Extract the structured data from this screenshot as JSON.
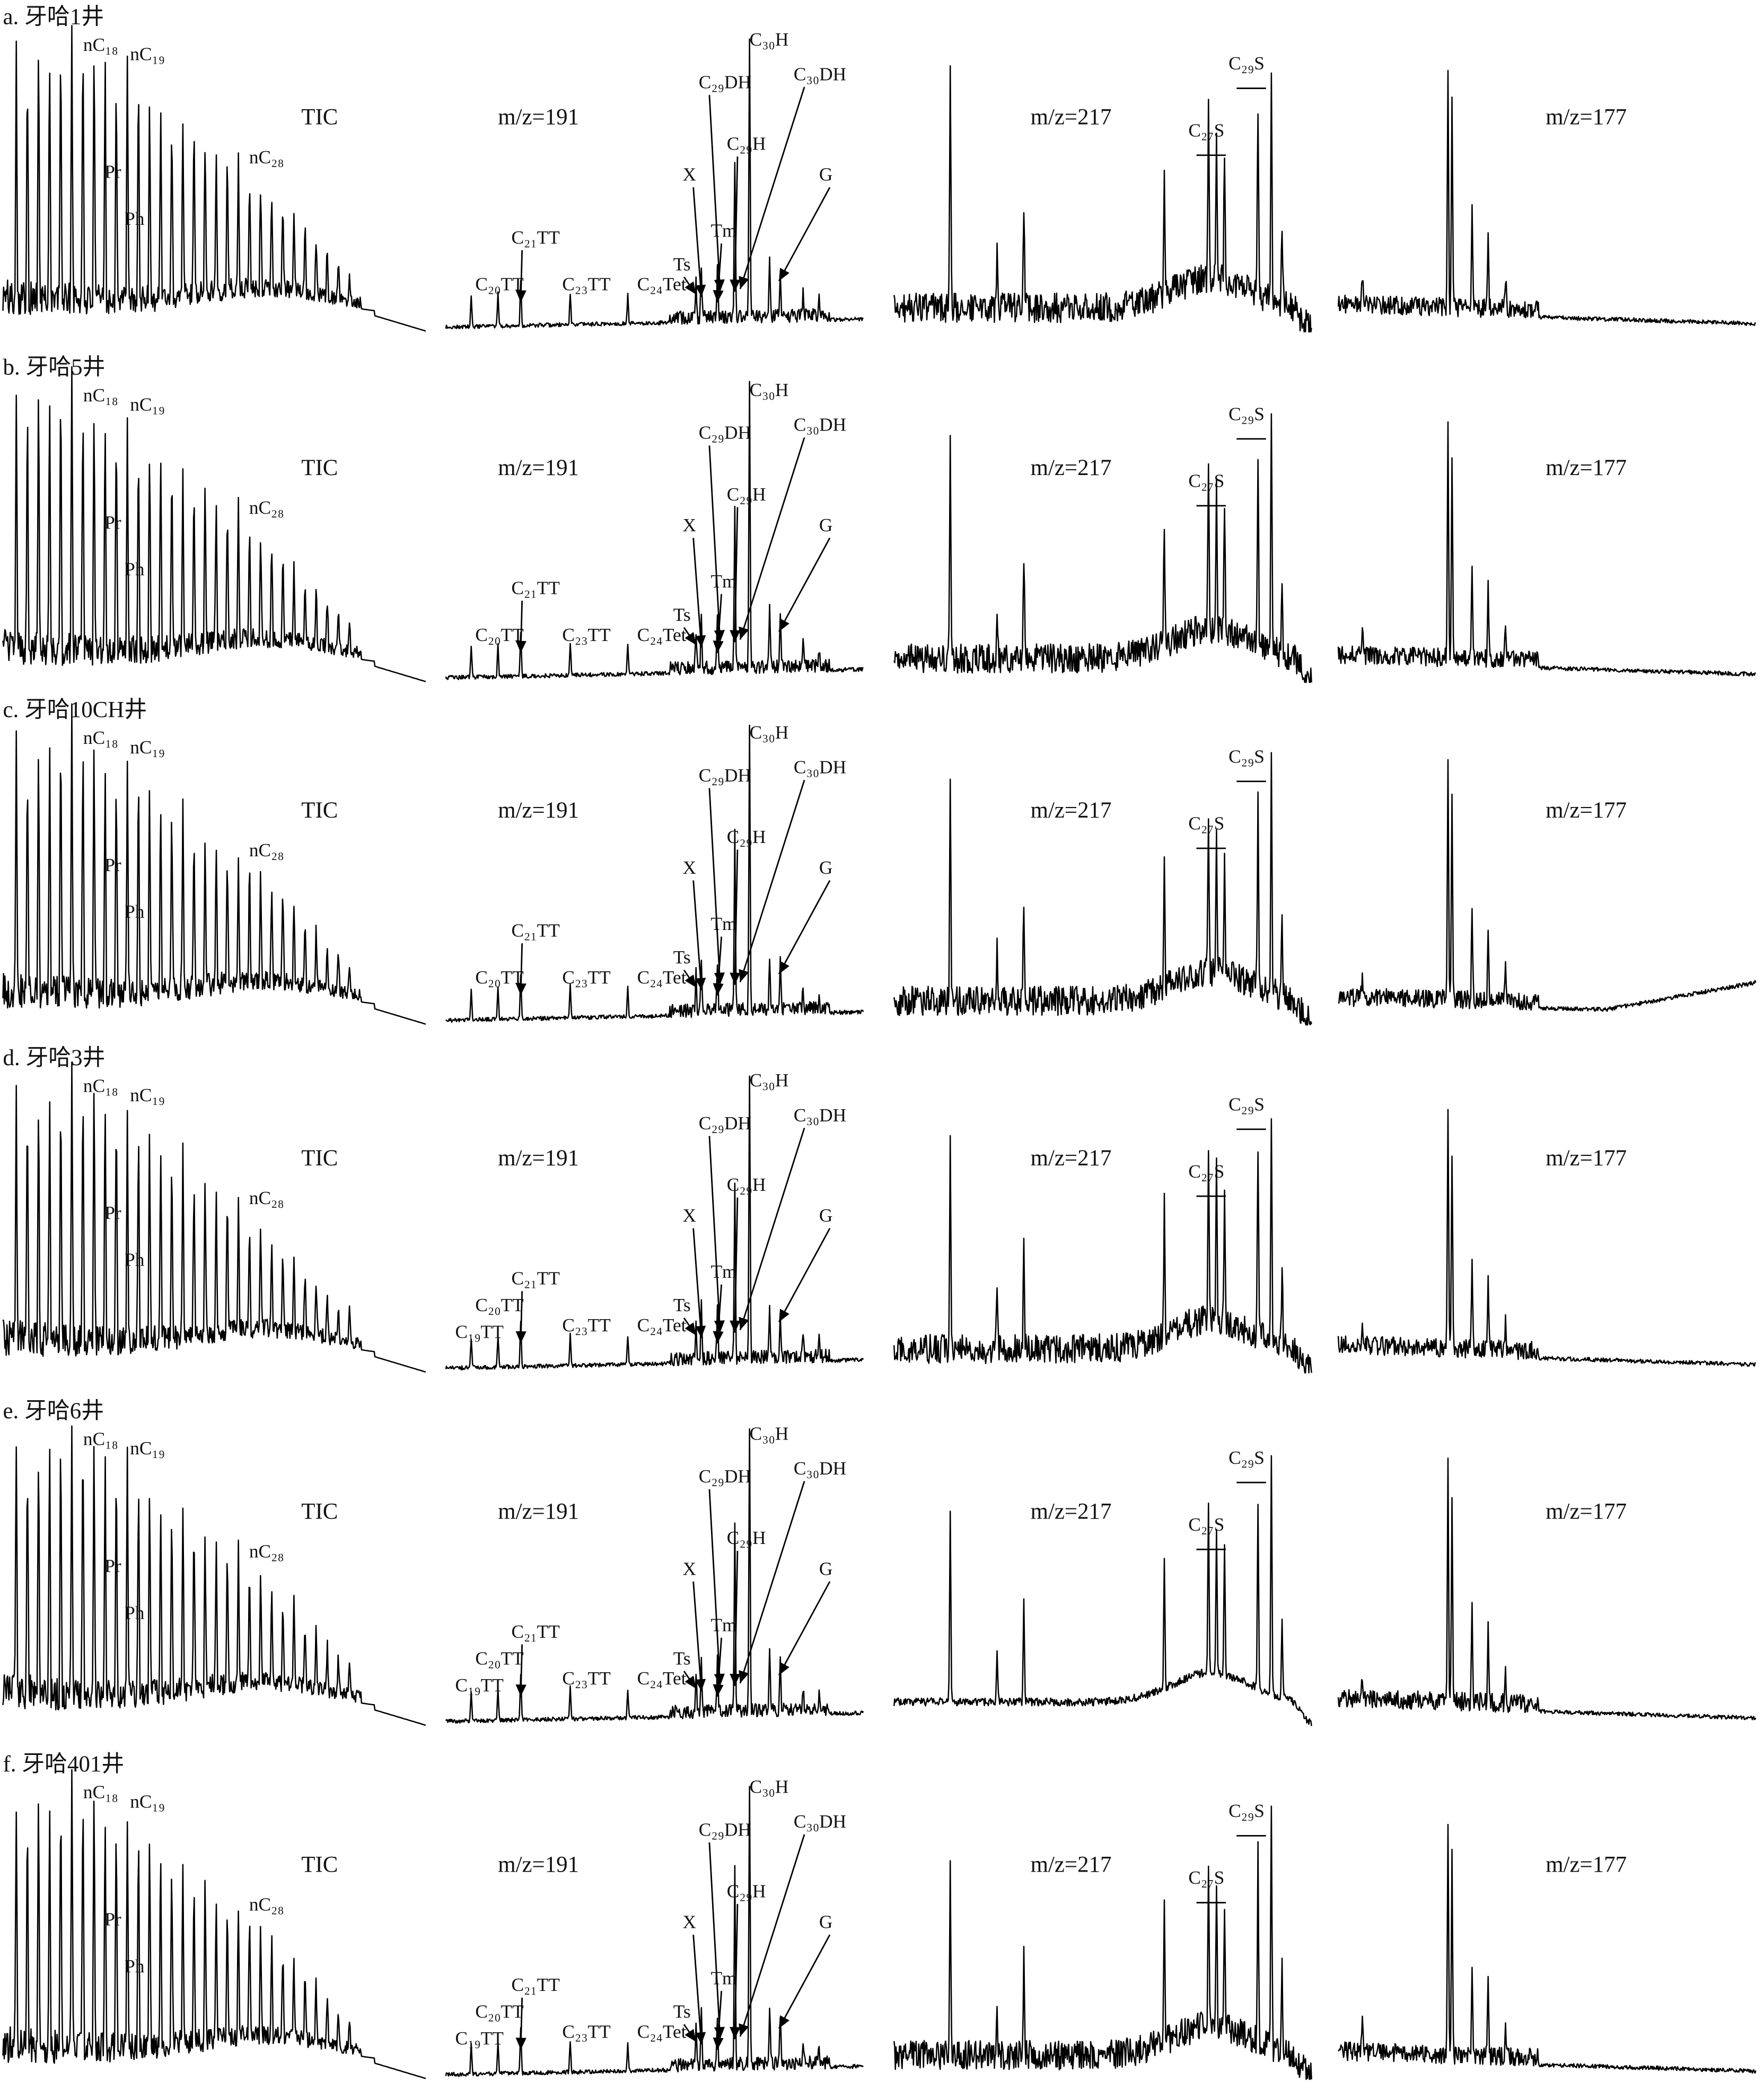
{
  "rows": [
    {
      "label": "a. 牙哈1井",
      "tic": {
        "title": "TIC",
        "peaks": [
          "nC₁₈",
          "nC₁₉",
          "nC₂₈",
          "Pr",
          "Ph"
        ]
      },
      "mz191": {
        "title": "m/z=191",
        "peaks": [
          "C₂₀TT",
          "C₂₁TT",
          "C₂₃TT",
          "C₂₄Tet",
          "Ts",
          "Tm",
          "X",
          "C₂₉H",
          "C₂₉DH",
          "C₃₀H",
          "C₃₀DH",
          "G"
        ]
      },
      "mz217": {
        "title": "m/z=217",
        "peaks": [
          "C₂₇S",
          "C₂₉S"
        ]
      },
      "mz177": {
        "title": "m/z=177"
      }
    },
    {
      "label": "b. 牙哈5井",
      "tic": {
        "title": "TIC",
        "peaks": [
          "nC₁₈",
          "nC₁₉",
          "nC₂₈",
          "Pr",
          "Ph"
        ]
      },
      "mz191": {
        "title": "m/z=191",
        "peaks": [
          "C₂₀TT",
          "C₂₁TT",
          "C₂₃TT",
          "C₂₄Tet",
          "Ts",
          "Tm",
          "X",
          "C₂₉H",
          "C₂₉DH",
          "C₃₀H",
          "C₃₀DH",
          "G"
        ]
      },
      "mz217": {
        "title": "m/z=217",
        "peaks": [
          "C₂₇S",
          "C₂₉S"
        ]
      },
      "mz177": {
        "title": "m/z=177"
      }
    },
    {
      "label": "c. 牙哈10CH井",
      "tic": {
        "title": "TIC",
        "peaks": [
          "nC₁₈",
          "nC₁₉",
          "nC₂₈",
          "Pr",
          "Ph"
        ]
      },
      "mz191": {
        "title": "m/z=191",
        "peaks": [
          "C₂₀TT",
          "C₂₁TT",
          "C₂₃TT",
          "C₂₄Tet",
          "Ts",
          "Tm",
          "X",
          "C₂₉H",
          "C₂₉DH",
          "C₃₀H",
          "C₃₀DH",
          "G"
        ]
      },
      "mz217": {
        "title": "m/z=217",
        "peaks": [
          "C₂₇S",
          "C₂₉S"
        ]
      },
      "mz177": {
        "title": "m/z=177"
      }
    },
    {
      "label": "d. 牙哈3井",
      "tic": {
        "title": "TIC",
        "peaks": [
          "nC₁₈",
          "nC₁₉",
          "nC₂₈",
          "Pr",
          "Ph"
        ]
      },
      "mz191": {
        "title": "m/z=191",
        "peaks": [
          "C₁₉TT",
          "C₂₀TT",
          "C₂₁TT",
          "C₂₃TT",
          "C₂₄Tet",
          "Ts",
          "Tm",
          "X",
          "C₂₉H",
          "C₂₉DH",
          "C₃₀H",
          "C₃₀DH",
          "G"
        ]
      },
      "mz217": {
        "title": "m/z=217",
        "peaks": [
          "C₂₇S",
          "C₂₉S"
        ]
      },
      "mz177": {
        "title": "m/z=177"
      }
    },
    {
      "label": "e. 牙哈6井",
      "tic": {
        "title": "TIC",
        "peaks": [
          "nC₁₈",
          "nC₁₉",
          "nC₂₈",
          "Pr",
          "Ph"
        ]
      },
      "mz191": {
        "title": "m/z=191",
        "peaks": [
          "C₁₉TT",
          "C₂₀TT",
          "C₂₁TT",
          "C₂₃TT",
          "C₂₄Tet",
          "Ts",
          "Tm",
          "X",
          "C₂₉H",
          "C₂₉DH",
          "C₃₀H",
          "C₃₀DH",
          "G"
        ]
      },
      "mz217": {
        "title": "m/z=217",
        "peaks": [
          "C₂₇S",
          "C₂₉S"
        ]
      },
      "mz177": {
        "title": "m/z=177"
      }
    },
    {
      "label": "f. 牙哈401井",
      "tic": {
        "title": "TIC",
        "peaks": [
          "nC₁₈",
          "nC₁₉",
          "nC₂₈",
          "Pr",
          "Ph"
        ]
      },
      "mz191": {
        "title": "m/z=191",
        "peaks": [
          "C₁₉TT",
          "C₂₀TT",
          "C₂₁TT",
          "C₂₃TT",
          "C₂₄Tet",
          "Ts",
          "Tm",
          "X",
          "C₂₉H",
          "C₂₉DH",
          "C₃₀H",
          "C₃₀DH",
          "G"
        ]
      },
      "mz217": {
        "title": "m/z=217",
        "peaks": [
          "C₂₇S",
          "C₂₉S"
        ]
      },
      "mz177": {
        "title": "m/z=177"
      }
    }
  ]
}
